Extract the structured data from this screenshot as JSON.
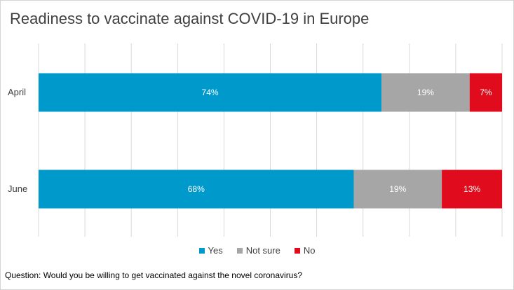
{
  "chart_data": {
    "type": "bar",
    "orientation": "horizontal",
    "stacked": true,
    "title": "Readiness to vaccinate against COVID-19 in Europe",
    "categories": [
      "April",
      "June"
    ],
    "series": [
      {
        "name": "Yes",
        "values": [
          74,
          68
        ],
        "labels": [
          "74%",
          "68%"
        ],
        "color": "#0099cc"
      },
      {
        "name": "Not sure",
        "values": [
          19,
          19
        ],
        "labels": [
          "19%",
          "19%"
        ],
        "color": "#a6a6a6"
      },
      {
        "name": "No",
        "values": [
          7,
          13
        ],
        "labels": [
          "7%",
          "13%"
        ],
        "color": "#e00b1c"
      }
    ],
    "xlim": [
      0,
      100
    ],
    "grid": true,
    "legend_position": "bottom",
    "footnote": "Question: Would you be willing to get vaccinated against the novel coronavirus?"
  }
}
